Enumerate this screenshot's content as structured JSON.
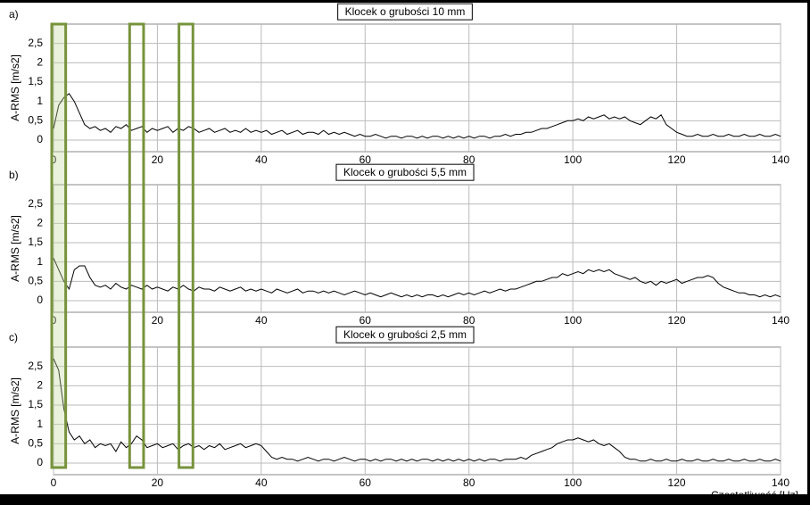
{
  "chart_data": [
    {
      "type": "line",
      "panel_label": "a)",
      "title": "Klocek o grubości 10 mm",
      "y_label": "A-RMS [m/s2]",
      "x_label": "Częstotliwość [Hz]",
      "color": "#000000",
      "grid": true,
      "xlim": [
        0,
        140
      ],
      "xticks": [
        0,
        20,
        40,
        60,
        80,
        100,
        120,
        140
      ],
      "ylim": [
        -0.3,
        3
      ],
      "yticks": [
        0,
        {
          "value": 0.5,
          "label": "0,5"
        },
        1,
        {
          "value": 1.5,
          "label": "1,5"
        },
        2,
        {
          "value": 2.5,
          "label": "2,5"
        }
      ],
      "x": [
        0,
        1,
        2,
        3,
        4,
        5,
        6,
        7,
        8,
        9,
        10,
        11,
        12,
        13,
        14,
        15,
        16,
        17,
        18,
        19,
        20,
        21,
        22,
        23,
        24,
        25,
        26,
        27,
        28,
        29,
        30,
        31,
        32,
        33,
        34,
        35,
        36,
        37,
        38,
        39,
        40,
        41,
        42,
        43,
        44,
        45,
        46,
        47,
        48,
        49,
        50,
        51,
        52,
        53,
        54,
        55,
        56,
        57,
        58,
        59,
        60,
        61,
        62,
        63,
        64,
        65,
        66,
        67,
        68,
        69,
        70,
        71,
        72,
        73,
        74,
        75,
        76,
        77,
        78,
        79,
        80,
        81,
        82,
        83,
        84,
        85,
        86,
        87,
        88,
        89,
        90,
        91,
        92,
        93,
        94,
        95,
        96,
        97,
        98,
        99,
        100,
        101,
        102,
        103,
        104,
        105,
        106,
        107,
        108,
        109,
        110,
        111,
        112,
        113,
        114,
        115,
        116,
        117,
        118,
        119,
        120,
        121,
        122,
        123,
        124,
        125,
        126,
        127,
        128,
        129,
        130,
        131,
        132,
        133,
        134,
        135,
        136,
        137,
        138,
        139,
        140
      ],
      "values": [
        0.3,
        0.9,
        1.1,
        1.2,
        1.0,
        0.7,
        0.4,
        0.3,
        0.35,
        0.25,
        0.3,
        0.2,
        0.35,
        0.3,
        0.4,
        0.25,
        0.3,
        0.35,
        0.2,
        0.3,
        0.25,
        0.3,
        0.35,
        0.2,
        0.3,
        0.25,
        0.35,
        0.3,
        0.2,
        0.25,
        0.3,
        0.2,
        0.25,
        0.3,
        0.2,
        0.25,
        0.2,
        0.3,
        0.2,
        0.25,
        0.2,
        0.25,
        0.15,
        0.2,
        0.25,
        0.15,
        0.2,
        0.25,
        0.15,
        0.2,
        0.2,
        0.15,
        0.25,
        0.15,
        0.2,
        0.15,
        0.2,
        0.15,
        0.1,
        0.15,
        0.1,
        0.1,
        0.15,
        0.1,
        0.05,
        0.1,
        0.1,
        0.05,
        0.1,
        0.1,
        0.05,
        0.1,
        0.05,
        0.1,
        0.1,
        0.05,
        0.1,
        0.05,
        0.1,
        0.05,
        0.1,
        0.05,
        0.1,
        0.1,
        0.05,
        0.1,
        0.1,
        0.15,
        0.1,
        0.15,
        0.15,
        0.2,
        0.2,
        0.25,
        0.3,
        0.3,
        0.35,
        0.4,
        0.45,
        0.5,
        0.5,
        0.55,
        0.5,
        0.6,
        0.55,
        0.6,
        0.65,
        0.55,
        0.6,
        0.55,
        0.6,
        0.5,
        0.45,
        0.4,
        0.5,
        0.6,
        0.55,
        0.65,
        0.4,
        0.3,
        0.2,
        0.15,
        0.1,
        0.1,
        0.15,
        0.1,
        0.1,
        0.15,
        0.1,
        0.1,
        0.15,
        0.1,
        0.1,
        0.15,
        0.1,
        0.1,
        0.15,
        0.1,
        0.1,
        0.15,
        0.1
      ]
    },
    {
      "type": "line",
      "panel_label": "b)",
      "title": "Klocek o grubości 5,5 mm",
      "y_label": "A-RMS [m/s2]",
      "x_label": "Częstotliwość [Hz]",
      "color": "#000000",
      "grid": true,
      "xlim": [
        0,
        140
      ],
      "xticks": [
        0,
        20,
        40,
        60,
        80,
        100,
        120,
        140
      ],
      "ylim": [
        -0.3,
        3
      ],
      "yticks": [
        0,
        {
          "value": 0.5,
          "label": "0,5"
        },
        1,
        {
          "value": 1.5,
          "label": "1,5"
        },
        2,
        {
          "value": 2.5,
          "label": "2,5"
        }
      ],
      "x": [
        0,
        1,
        2,
        3,
        4,
        5,
        6,
        7,
        8,
        9,
        10,
        11,
        12,
        13,
        14,
        15,
        16,
        17,
        18,
        19,
        20,
        21,
        22,
        23,
        24,
        25,
        26,
        27,
        28,
        29,
        30,
        31,
        32,
        33,
        34,
        35,
        36,
        37,
        38,
        39,
        40,
        41,
        42,
        43,
        44,
        45,
        46,
        47,
        48,
        49,
        50,
        51,
        52,
        53,
        54,
        55,
        56,
        57,
        58,
        59,
        60,
        61,
        62,
        63,
        64,
        65,
        66,
        67,
        68,
        69,
        70,
        71,
        72,
        73,
        74,
        75,
        76,
        77,
        78,
        79,
        80,
        81,
        82,
        83,
        84,
        85,
        86,
        87,
        88,
        89,
        90,
        91,
        92,
        93,
        94,
        95,
        96,
        97,
        98,
        99,
        100,
        101,
        102,
        103,
        104,
        105,
        106,
        107,
        108,
        109,
        110,
        111,
        112,
        113,
        114,
        115,
        116,
        117,
        118,
        119,
        120,
        121,
        122,
        123,
        124,
        125,
        126,
        127,
        128,
        129,
        130,
        131,
        132,
        133,
        134,
        135,
        136,
        137,
        138,
        139,
        140
      ],
      "values": [
        1.1,
        0.8,
        0.5,
        0.3,
        0.8,
        0.9,
        0.9,
        0.6,
        0.4,
        0.35,
        0.4,
        0.3,
        0.45,
        0.35,
        0.3,
        0.4,
        0.35,
        0.3,
        0.4,
        0.3,
        0.35,
        0.3,
        0.25,
        0.35,
        0.3,
        0.4,
        0.3,
        0.25,
        0.35,
        0.3,
        0.3,
        0.25,
        0.35,
        0.3,
        0.25,
        0.3,
        0.35,
        0.25,
        0.3,
        0.25,
        0.3,
        0.25,
        0.2,
        0.3,
        0.25,
        0.2,
        0.25,
        0.3,
        0.2,
        0.25,
        0.25,
        0.2,
        0.25,
        0.2,
        0.25,
        0.2,
        0.15,
        0.2,
        0.25,
        0.2,
        0.15,
        0.2,
        0.15,
        0.1,
        0.15,
        0.2,
        0.15,
        0.1,
        0.15,
        0.1,
        0.15,
        0.1,
        0.15,
        0.15,
        0.1,
        0.15,
        0.1,
        0.15,
        0.2,
        0.15,
        0.2,
        0.15,
        0.2,
        0.25,
        0.2,
        0.25,
        0.3,
        0.25,
        0.3,
        0.3,
        0.35,
        0.4,
        0.45,
        0.5,
        0.5,
        0.55,
        0.6,
        0.6,
        0.7,
        0.65,
        0.7,
        0.75,
        0.7,
        0.8,
        0.75,
        0.8,
        0.75,
        0.8,
        0.7,
        0.65,
        0.6,
        0.55,
        0.6,
        0.5,
        0.45,
        0.5,
        0.4,
        0.5,
        0.45,
        0.5,
        0.55,
        0.45,
        0.5,
        0.55,
        0.6,
        0.6,
        0.65,
        0.6,
        0.45,
        0.35,
        0.3,
        0.25,
        0.2,
        0.2,
        0.15,
        0.15,
        0.1,
        0.15,
        0.1,
        0.15,
        0.1
      ]
    },
    {
      "type": "line",
      "panel_label": "c)",
      "title": "Klocek o grubości 2,5 mm",
      "y_label": "A-RMS [m/s2]",
      "x_label": "Częstotliwość [Hz]",
      "color": "#000000",
      "grid": true,
      "xlim": [
        0,
        140
      ],
      "xticks": [
        0,
        20,
        40,
        60,
        80,
        100,
        120,
        140
      ],
      "ylim": [
        -0.3,
        3
      ],
      "yticks": [
        0,
        {
          "value": 0.5,
          "label": "0,5"
        },
        1,
        {
          "value": 1.5,
          "label": "1,5"
        },
        2,
        {
          "value": 2.5,
          "label": "2,5"
        }
      ],
      "x": [
        0,
        1,
        2,
        3,
        4,
        5,
        6,
        7,
        8,
        9,
        10,
        11,
        12,
        13,
        14,
        15,
        16,
        17,
        18,
        19,
        20,
        21,
        22,
        23,
        24,
        25,
        26,
        27,
        28,
        29,
        30,
        31,
        32,
        33,
        34,
        35,
        36,
        37,
        38,
        39,
        40,
        41,
        42,
        43,
        44,
        45,
        46,
        47,
        48,
        49,
        50,
        51,
        52,
        53,
        54,
        55,
        56,
        57,
        58,
        59,
        60,
        61,
        62,
        63,
        64,
        65,
        66,
        67,
        68,
        69,
        70,
        71,
        72,
        73,
        74,
        75,
        76,
        77,
        78,
        79,
        80,
        81,
        82,
        83,
        84,
        85,
        86,
        87,
        88,
        89,
        90,
        91,
        92,
        93,
        94,
        95,
        96,
        97,
        98,
        99,
        100,
        101,
        102,
        103,
        104,
        105,
        106,
        107,
        108,
        109,
        110,
        111,
        112,
        113,
        114,
        115,
        116,
        117,
        118,
        119,
        120,
        121,
        122,
        123,
        124,
        125,
        126,
        127,
        128,
        129,
        130,
        131,
        132,
        133,
        134,
        135,
        136,
        137,
        138,
        139,
        140
      ],
      "values": [
        2.7,
        2.4,
        1.4,
        0.8,
        0.6,
        0.7,
        0.5,
        0.6,
        0.4,
        0.5,
        0.45,
        0.5,
        0.3,
        0.55,
        0.4,
        0.5,
        0.7,
        0.6,
        0.4,
        0.45,
        0.5,
        0.4,
        0.45,
        0.5,
        0.35,
        0.45,
        0.5,
        0.4,
        0.45,
        0.35,
        0.45,
        0.4,
        0.5,
        0.35,
        0.4,
        0.45,
        0.5,
        0.4,
        0.45,
        0.5,
        0.45,
        0.3,
        0.15,
        0.1,
        0.15,
        0.1,
        0.1,
        0.05,
        0.1,
        0.15,
        0.1,
        0.05,
        0.1,
        0.1,
        0.05,
        0.1,
        0.15,
        0.1,
        0.05,
        0.1,
        0.1,
        0.05,
        0.1,
        0.05,
        0.1,
        0.1,
        0.05,
        0.1,
        0.05,
        0.1,
        0.05,
        0.1,
        0.1,
        0.05,
        0.1,
        0.05,
        0.1,
        0.05,
        0.1,
        0.05,
        0.1,
        0.05,
        0.1,
        0.05,
        0.1,
        0.1,
        0.05,
        0.1,
        0.1,
        0.1,
        0.15,
        0.1,
        0.2,
        0.25,
        0.3,
        0.35,
        0.4,
        0.5,
        0.55,
        0.6,
        0.6,
        0.65,
        0.6,
        0.55,
        0.6,
        0.5,
        0.45,
        0.5,
        0.4,
        0.3,
        0.15,
        0.1,
        0.1,
        0.05,
        0.05,
        0.1,
        0.05,
        0.05,
        0.1,
        0.05,
        0.05,
        0.1,
        0.05,
        0.05,
        0.1,
        0.05,
        0.05,
        0.1,
        0.05,
        0.05,
        0.1,
        0.05,
        0.05,
        0.1,
        0.05,
        0.05,
        0.1,
        0.05,
        0.05,
        0.1,
        0.05
      ]
    }
  ],
  "highlight_bands": [
    [
      0,
      2
    ],
    [
      15,
      17
    ],
    [
      24.5,
      26.5
    ]
  ]
}
